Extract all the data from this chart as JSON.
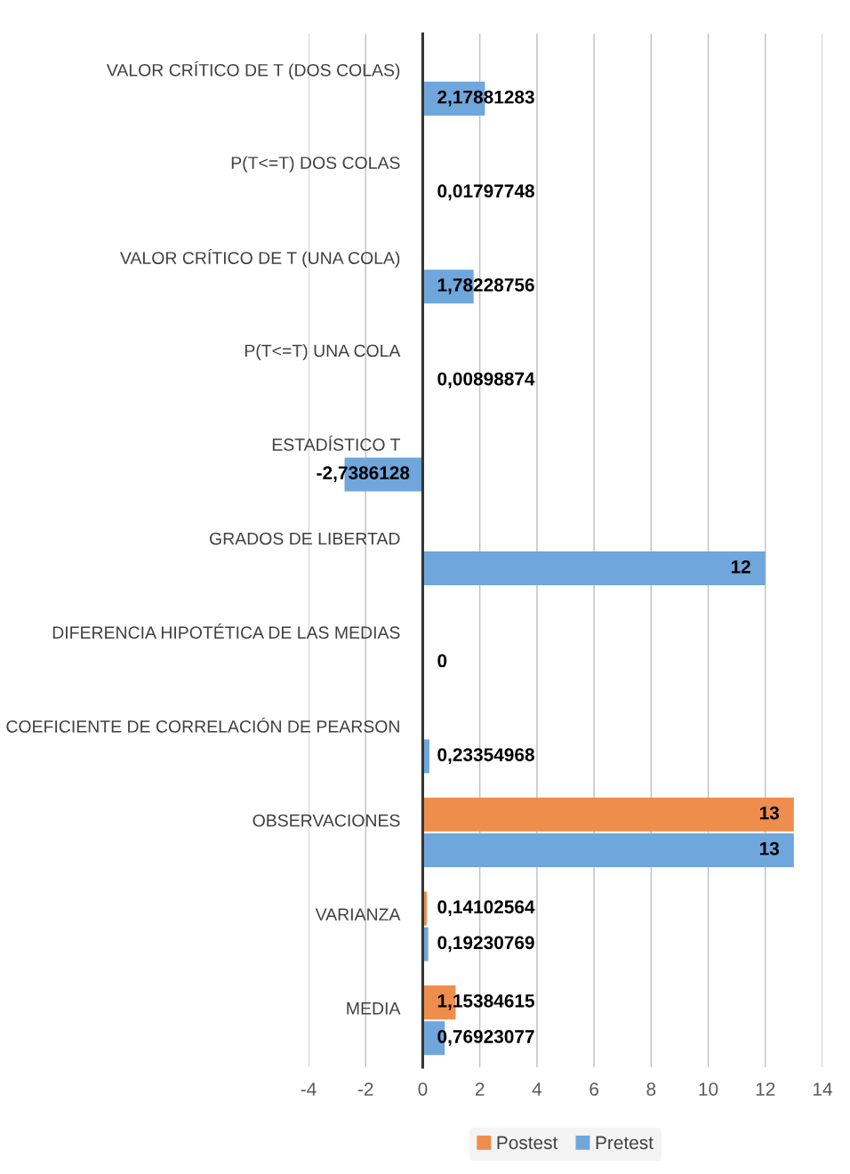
{
  "chart_data": {
    "type": "bar",
    "orientation": "horizontal",
    "categories": [
      "VALOR CRÍTICO DE T (DOS COLAS)",
      "P(T<=T) DOS COLAS",
      "VALOR CRÍTICO DE T (UNA COLA)",
      "P(T<=T) UNA COLA",
      "ESTADÍSTICO T",
      "GRADOS DE LIBERTAD",
      "DIFERENCIA HIPOTÉTICA DE LAS MEDIAS",
      "COEFICIENTE DE CORRELACIÓN DE PEARSON",
      "OBSERVACIONES",
      "VARIANZA",
      "MEDIA"
    ],
    "series": [
      {
        "name": "Postest",
        "color": "#ef8d4d",
        "values": [
          null,
          null,
          null,
          null,
          null,
          null,
          null,
          null,
          13,
          0.14102564,
          1.15384615
        ],
        "value_labels": [
          null,
          null,
          null,
          null,
          null,
          null,
          null,
          null,
          "13",
          "0,14102564",
          "1,15384615"
        ]
      },
      {
        "name": "Pretest",
        "color": "#6fa6dc",
        "values": [
          2.17881283,
          0.01797748,
          1.78228756,
          0.00898874,
          -2.7386128,
          12,
          0,
          0.23354968,
          13,
          0.19230769,
          0.76923077
        ],
        "value_labels": [
          "2,17881283",
          "0,01797748",
          "1,78228756",
          "0,00898874",
          "-2,7386128",
          "12",
          "0",
          "0,23354968",
          "13",
          "0,19230769",
          "0,76923077"
        ]
      }
    ],
    "xlim": [
      -4,
      14
    ],
    "xticks": [
      -4,
      -2,
      0,
      2,
      4,
      6,
      8,
      10,
      12,
      14
    ],
    "grid": "x",
    "legend": "bottom"
  }
}
